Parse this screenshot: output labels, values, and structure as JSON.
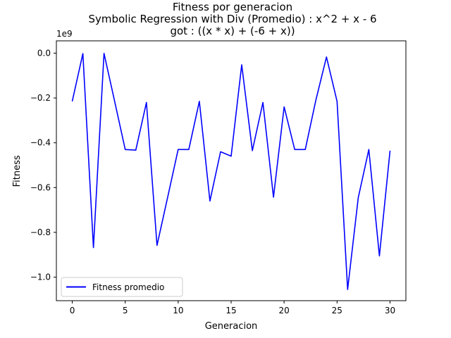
{
  "chart_data": {
    "type": "line",
    "title_lines": [
      "Fitness por generacion",
      "Symbolic Regression with Div (Promedio) : x^2 + x - 6",
      "got : ((x * x) + (-6 + x))"
    ],
    "xlabel": "Generacion",
    "ylabel": "Fitness",
    "y_offset_label": "1e9",
    "xlim": [
      -1.5,
      31.5
    ],
    "ylim": [
      -1.105,
      0.055
    ],
    "x_ticks": [
      0,
      5,
      10,
      15,
      20,
      25,
      30
    ],
    "x_tick_labels": [
      "0",
      "5",
      "10",
      "15",
      "20",
      "25",
      "30"
    ],
    "y_ticks": [
      0.0,
      -0.2,
      -0.4,
      -0.6,
      -0.8,
      -1.0
    ],
    "y_tick_labels": [
      "0.0",
      "−0.2",
      "−0.4",
      "−0.6",
      "−0.8",
      "−1.0"
    ],
    "grid": false,
    "legend_position": "lower-left",
    "series": [
      {
        "name": "Fitness promedio",
        "color": "#0000ff",
        "x": [
          0,
          1,
          2,
          3,
          4,
          5,
          6,
          7,
          8,
          9,
          10,
          11,
          12,
          13,
          14,
          15,
          16,
          17,
          18,
          19,
          20,
          21,
          22,
          23,
          24,
          25,
          26,
          27,
          28,
          29,
          30
        ],
        "values": [
          -0.215,
          -0.002,
          -0.868,
          -0.001,
          -0.215,
          -0.43,
          -0.433,
          -0.22,
          -0.858,
          -0.645,
          -0.43,
          -0.43,
          -0.215,
          -0.66,
          -0.44,
          -0.46,
          -0.052,
          -0.435,
          -0.22,
          -0.643,
          -0.24,
          -0.43,
          -0.43,
          -0.21,
          -0.017,
          -0.215,
          -1.055,
          -0.645,
          -0.43,
          -0.905,
          -0.435
        ]
      }
    ]
  }
}
